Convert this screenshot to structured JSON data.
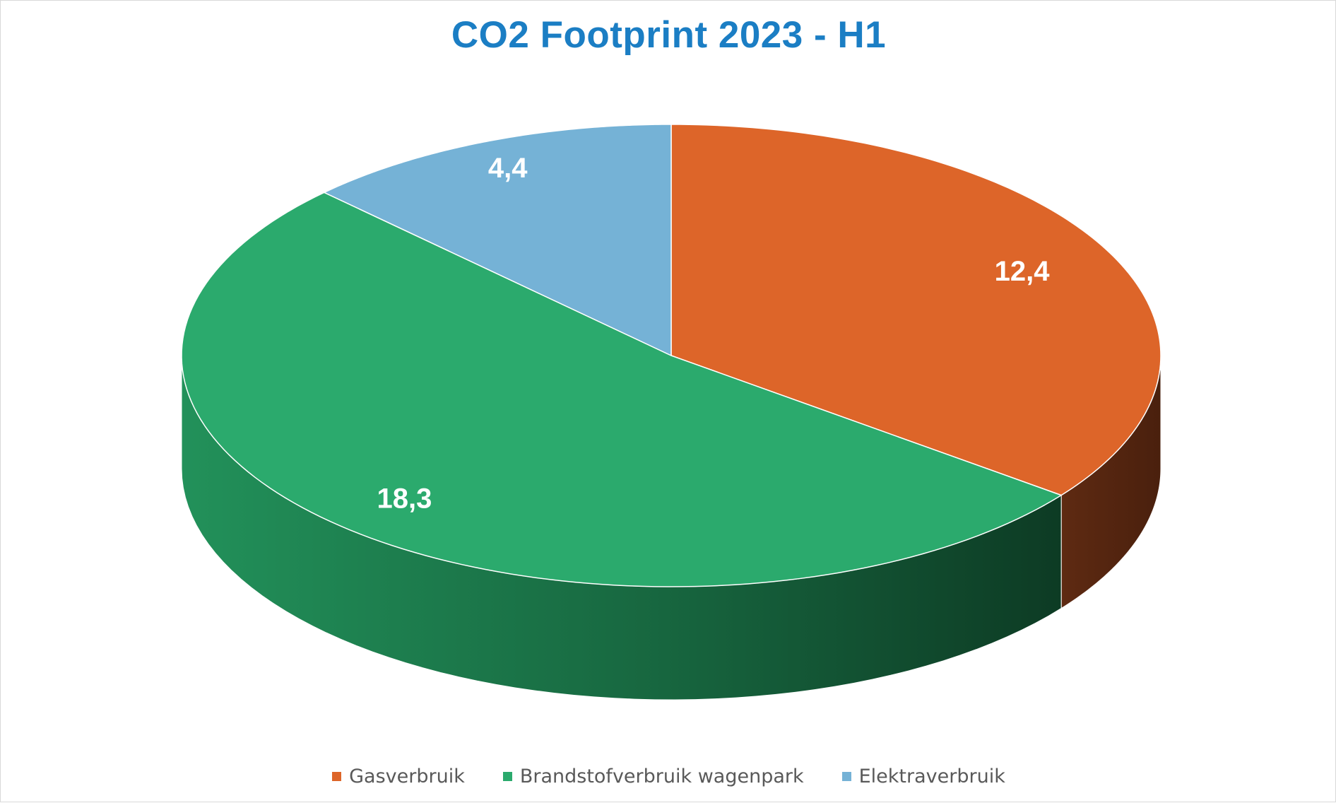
{
  "chart_data": {
    "type": "pie",
    "title": "CO2 Footprint 2023 - H1",
    "three_d": true,
    "legend_position": "bottom",
    "data_labels": "values",
    "slices": [
      {
        "label": "Gasverbruik",
        "value": 12.4,
        "display": "12,4",
        "color": "#dd6529"
      },
      {
        "label": "Brandstofverbruik wagenpark",
        "value": 18.3,
        "display": "18,3",
        "color": "#2baa6d"
      },
      {
        "label": "Elektraverbruik",
        "value": 4.4,
        "display": "4,4",
        "color": "#75b2d6"
      }
    ]
  }
}
